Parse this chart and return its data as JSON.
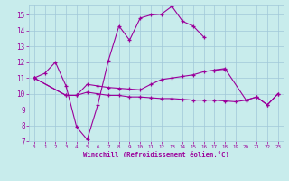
{
  "background_color": "#c8ecec",
  "grid_color": "#a0c8d8",
  "line_color": "#9b009b",
  "text_color": "#9b009b",
  "xlabel": "Windchill (Refroidissement éolien,°C)",
  "xlim": [
    -0.5,
    23.5
  ],
  "ylim": [
    7,
    15.6
  ],
  "yticks": [
    7,
    8,
    9,
    10,
    11,
    12,
    13,
    14,
    15
  ],
  "xticks": [
    0,
    1,
    2,
    3,
    4,
    5,
    6,
    7,
    8,
    9,
    10,
    11,
    12,
    13,
    14,
    15,
    16,
    17,
    18,
    19,
    20,
    21,
    22,
    23
  ],
  "series": [
    {
      "x": [
        0,
        1,
        2,
        3,
        4,
        5,
        6,
        7,
        8,
        9,
        10,
        11,
        12,
        13,
        14,
        15,
        16
      ],
      "y": [
        11.0,
        11.3,
        12.0,
        10.5,
        7.9,
        7.1,
        9.3,
        12.1,
        14.3,
        13.4,
        14.8,
        15.0,
        15.05,
        15.55,
        14.6,
        14.3,
        13.6
      ]
    },
    {
      "x": [
        0,
        3,
        4,
        5,
        6,
        7,
        8,
        9,
        10,
        11,
        12,
        13,
        14,
        15,
        16,
        17,
        18
      ],
      "y": [
        11.0,
        9.9,
        9.9,
        10.6,
        10.5,
        10.4,
        10.35,
        10.3,
        10.25,
        10.6,
        10.9,
        11.0,
        11.1,
        11.2,
        11.4,
        11.5,
        11.55
      ]
    },
    {
      "x": [
        0,
        3,
        4,
        5,
        6,
        7,
        8,
        9,
        10,
        11,
        12,
        13,
        14,
        15,
        16,
        17,
        18,
        19,
        20,
        21,
        22,
        23
      ],
      "y": [
        11.0,
        9.9,
        9.9,
        10.1,
        10.0,
        9.9,
        9.9,
        9.8,
        9.8,
        9.75,
        9.7,
        9.7,
        9.65,
        9.6,
        9.6,
        9.6,
        9.55,
        9.5,
        9.6,
        9.8,
        9.3,
        10.0
      ]
    },
    {
      "x": [
        17,
        18,
        20,
        21,
        22,
        23
      ],
      "y": [
        11.5,
        11.6,
        9.6,
        9.8,
        9.3,
        10.0
      ]
    }
  ]
}
